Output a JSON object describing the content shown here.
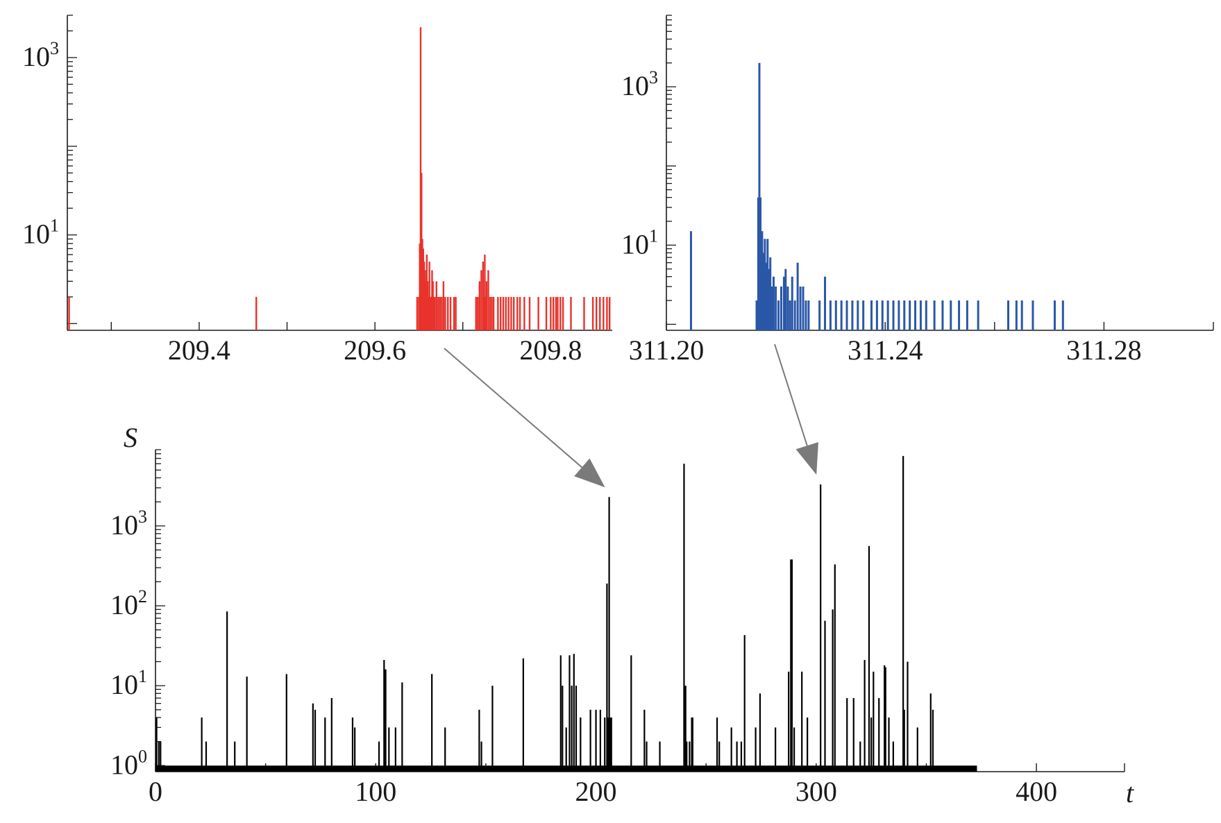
{
  "colors": {
    "axis": "#1a1a1a",
    "zoom_left": "#e8322b",
    "zoom_right": "#2a57a8",
    "main": "#000000",
    "arrow": "#7a7a7a"
  },
  "chart_data": [
    {
      "id": "zoom-left",
      "type": "bar",
      "scale_y": "log",
      "color": "zoom_left",
      "xlim": [
        209.25,
        209.87
      ],
      "ylim": [
        1,
        3000
      ],
      "xticks": [
        209.3,
        209.4,
        209.5,
        209.6,
        209.7,
        209.8
      ],
      "xtick_labels": [
        {
          "value": 209.4,
          "label": "209.4"
        },
        {
          "value": 209.6,
          "label": "209.6"
        },
        {
          "value": 209.8,
          "label": "209.8"
        }
      ],
      "ytick_labels": [
        {
          "base": "10",
          "exp": "1",
          "value": 10
        },
        {
          "base": "10",
          "exp": "3",
          "value": 1000
        }
      ],
      "ytick_major": [
        1,
        10,
        100,
        1000
      ],
      "bars": [
        [
          209.252,
          2
        ],
        [
          209.465,
          2
        ],
        [
          209.648,
          2
        ],
        [
          209.65,
          2
        ],
        [
          209.651,
          8
        ],
        [
          209.652,
          2200
        ],
        [
          209.653,
          50
        ],
        [
          209.654,
          9
        ],
        [
          209.655,
          7
        ],
        [
          209.656,
          5
        ],
        [
          209.657,
          4
        ],
        [
          209.658,
          3
        ],
        [
          209.659,
          6
        ],
        [
          209.66,
          3
        ],
        [
          209.661,
          2
        ],
        [
          209.662,
          5
        ],
        [
          209.663,
          2
        ],
        [
          209.664,
          2
        ],
        [
          209.665,
          4
        ],
        [
          209.666,
          3
        ],
        [
          209.667,
          2
        ],
        [
          209.668,
          2
        ],
        [
          209.67,
          3
        ],
        [
          209.672,
          2
        ],
        [
          209.674,
          2
        ],
        [
          209.676,
          2
        ],
        [
          209.678,
          3
        ],
        [
          209.68,
          2
        ],
        [
          209.683,
          2
        ],
        [
          209.686,
          2
        ],
        [
          209.69,
          2
        ],
        [
          209.692,
          2
        ],
        [
          209.715,
          2
        ],
        [
          209.717,
          2
        ],
        [
          209.719,
          3
        ],
        [
          209.721,
          4
        ],
        [
          209.723,
          5
        ],
        [
          209.724,
          2
        ],
        [
          209.725,
          6
        ],
        [
          209.726,
          2
        ],
        [
          209.727,
          3
        ],
        [
          209.729,
          4
        ],
        [
          209.731,
          2
        ],
        [
          209.733,
          2
        ],
        [
          209.735,
          2
        ],
        [
          209.74,
          2
        ],
        [
          209.743,
          2
        ],
        [
          209.746,
          2
        ],
        [
          209.749,
          2
        ],
        [
          209.752,
          2
        ],
        [
          209.755,
          2
        ],
        [
          209.758,
          2
        ],
        [
          209.762,
          2
        ],
        [
          209.765,
          2
        ],
        [
          209.77,
          2
        ],
        [
          209.776,
          2
        ],
        [
          209.786,
          2
        ],
        [
          209.795,
          2
        ],
        [
          209.8,
          2
        ],
        [
          209.803,
          2
        ],
        [
          209.806,
          2
        ],
        [
          209.808,
          2
        ],
        [
          209.811,
          2
        ],
        [
          209.814,
          2
        ],
        [
          209.823,
          2
        ],
        [
          209.838,
          2
        ],
        [
          209.848,
          2
        ],
        [
          209.852,
          2
        ],
        [
          209.856,
          2
        ],
        [
          209.86,
          2
        ],
        [
          209.864,
          2
        ],
        [
          209.867,
          2
        ]
      ]
    },
    {
      "id": "zoom-right",
      "type": "bar",
      "scale_y": "log",
      "color": "zoom_right",
      "xlim": [
        311.2,
        311.3
      ],
      "ylim": [
        1,
        8000
      ],
      "xticks": [
        311.2,
        311.22,
        311.24,
        311.26,
        311.28,
        311.3
      ],
      "xtick_labels": [
        {
          "value": 311.2,
          "label": "311.20"
        },
        {
          "value": 311.24,
          "label": "311.24"
        },
        {
          "value": 311.28,
          "label": "311.28"
        }
      ],
      "ytick_labels": [
        {
          "base": "10",
          "exp": "1",
          "value": 10
        },
        {
          "base": "10",
          "exp": "3",
          "value": 1000
        }
      ],
      "ytick_major": [
        1,
        10,
        100,
        1000
      ],
      "bars": [
        [
          311.2045,
          15
        ],
        [
          311.2165,
          2
        ],
        [
          311.2168,
          40
        ],
        [
          311.217,
          2000
        ],
        [
          311.2172,
          40
        ],
        [
          311.2175,
          15
        ],
        [
          311.2178,
          8
        ],
        [
          311.218,
          12
        ],
        [
          311.2182,
          6
        ],
        [
          311.2185,
          12
        ],
        [
          311.2188,
          5
        ],
        [
          311.219,
          7
        ],
        [
          311.2193,
          3
        ],
        [
          311.2196,
          4
        ],
        [
          311.22,
          3
        ],
        [
          311.2205,
          2
        ],
        [
          311.221,
          3
        ],
        [
          311.2215,
          4
        ],
        [
          311.2218,
          5
        ],
        [
          311.2222,
          3
        ],
        [
          311.2226,
          2
        ],
        [
          311.223,
          4
        ],
        [
          311.2235,
          2
        ],
        [
          311.224,
          6
        ],
        [
          311.2245,
          3
        ],
        [
          311.225,
          3
        ],
        [
          311.2255,
          2
        ],
        [
          311.226,
          2
        ],
        [
          311.228,
          2
        ],
        [
          311.229,
          4
        ],
        [
          311.23,
          2
        ],
        [
          311.231,
          2
        ],
        [
          311.232,
          2
        ],
        [
          311.233,
          2
        ],
        [
          311.234,
          2
        ],
        [
          311.235,
          2
        ],
        [
          311.236,
          2
        ],
        [
          311.2375,
          2
        ],
        [
          311.2385,
          2
        ],
        [
          311.2395,
          2
        ],
        [
          311.2405,
          2
        ],
        [
          311.2415,
          2
        ],
        [
          311.2425,
          2
        ],
        [
          311.2435,
          2
        ],
        [
          311.2445,
          2
        ],
        [
          311.2455,
          2
        ],
        [
          311.2465,
          2
        ],
        [
          311.2475,
          2
        ],
        [
          311.249,
          2
        ],
        [
          311.2505,
          2
        ],
        [
          311.252,
          2
        ],
        [
          311.2535,
          2
        ],
        [
          311.255,
          2
        ],
        [
          311.257,
          2
        ],
        [
          311.2625,
          2
        ],
        [
          311.264,
          2
        ],
        [
          311.265,
          2
        ],
        [
          311.267,
          2
        ],
        [
          311.271,
          2
        ],
        [
          311.2725,
          2
        ]
      ]
    },
    {
      "id": "main",
      "type": "bar",
      "scale_y": "log",
      "color": "main",
      "xlabel": "t",
      "ylabel": "S",
      "xlim": [
        0,
        440
      ],
      "ylim": [
        1,
        9000
      ],
      "baseline_end": 373,
      "xticks": [
        0,
        50,
        100,
        150,
        200,
        250,
        300,
        350,
        400,
        440
      ],
      "xtick_labels": [
        {
          "value": 0,
          "label": "0"
        },
        {
          "value": 100,
          "label": "100"
        },
        {
          "value": 200,
          "label": "200"
        },
        {
          "value": 300,
          "label": "300"
        },
        {
          "value": 400,
          "label": "400"
        }
      ],
      "ytick_labels": [
        {
          "base": "10",
          "exp": "0",
          "value": 1
        },
        {
          "base": "10",
          "exp": "1",
          "value": 10
        },
        {
          "base": "10",
          "exp": "2",
          "value": 100
        },
        {
          "base": "10",
          "exp": "3",
          "value": 1000
        }
      ],
      "ytick_major": [
        1,
        10,
        100,
        1000
      ],
      "bars": [
        [
          0.5,
          4
        ],
        [
          1.5,
          2
        ],
        [
          2.3,
          2
        ],
        [
          21,
          4
        ],
        [
          23,
          2
        ],
        [
          32.5,
          85
        ],
        [
          36,
          2
        ],
        [
          41.5,
          13
        ],
        [
          59.5,
          14
        ],
        [
          71.5,
          6
        ],
        [
          72.5,
          5
        ],
        [
          77,
          4
        ],
        [
          80,
          7
        ],
        [
          89.5,
          4
        ],
        [
          90.5,
          3
        ],
        [
          101.5,
          2
        ],
        [
          103.8,
          21
        ],
        [
          104.5,
          16
        ],
        [
          106,
          3
        ],
        [
          109,
          3
        ],
        [
          112,
          11
        ],
        [
          125.5,
          14
        ],
        [
          131.5,
          3
        ],
        [
          147,
          5
        ],
        [
          148,
          2
        ],
        [
          153,
          10
        ],
        [
          167,
          22
        ],
        [
          184,
          24
        ],
        [
          184.8,
          10
        ],
        [
          186.5,
          3
        ],
        [
          188,
          24
        ],
        [
          189,
          10
        ],
        [
          190,
          25
        ],
        [
          191,
          10
        ],
        [
          193,
          4
        ],
        [
          197.5,
          5
        ],
        [
          200,
          5
        ],
        [
          202,
          5
        ],
        [
          204,
          4
        ],
        [
          205,
          190
        ],
        [
          205.5,
          4
        ],
        [
          206,
          2300
        ],
        [
          206.5,
          4
        ],
        [
          207,
          4
        ],
        [
          216,
          24
        ],
        [
          222,
          5
        ],
        [
          223,
          2
        ],
        [
          229,
          2
        ],
        [
          240,
          6000
        ],
        [
          240.7,
          10
        ],
        [
          241.2,
          2
        ],
        [
          242.5,
          2
        ],
        [
          243.5,
          4
        ],
        [
          243.9,
          4
        ],
        [
          255,
          4
        ],
        [
          256,
          2
        ],
        [
          261.5,
          3
        ],
        [
          264,
          2
        ],
        [
          266,
          2
        ],
        [
          267.5,
          43
        ],
        [
          272.5,
          3
        ],
        [
          274.5,
          8
        ],
        [
          281.5,
          3
        ],
        [
          287.5,
          15
        ],
        [
          288.5,
          380
        ],
        [
          289,
          380
        ],
        [
          290,
          3
        ],
        [
          293.5,
          15
        ],
        [
          296,
          4
        ],
        [
          302,
          3300
        ],
        [
          304,
          65
        ],
        [
          307.5,
          90
        ],
        [
          308.5,
          330
        ],
        [
          314,
          7
        ],
        [
          317,
          7
        ],
        [
          320,
          2
        ],
        [
          322,
          21
        ],
        [
          324,
          560
        ],
        [
          325,
          4
        ],
        [
          326,
          15
        ],
        [
          328.5,
          7
        ],
        [
          331,
          18
        ],
        [
          331.5,
          17
        ],
        [
          333,
          4
        ],
        [
          335,
          2
        ],
        [
          339.5,
          7500
        ],
        [
          340,
          5
        ],
        [
          341.5,
          20
        ],
        [
          346,
          3
        ],
        [
          352,
          8
        ],
        [
          353,
          5
        ]
      ]
    }
  ],
  "arrows": [
    {
      "from": "zoom-left",
      "to": "main",
      "peak_t": 206
    },
    {
      "from": "zoom-right",
      "to": "main",
      "peak_t": 302
    }
  ]
}
